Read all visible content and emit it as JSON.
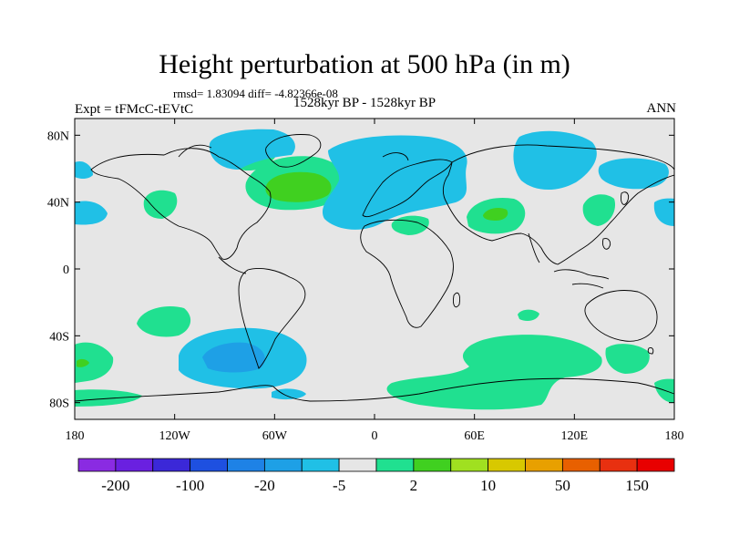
{
  "title": "Height perturbation at 500 hPa (in m)",
  "stats": "rmsd= 1.83094 diff= -4.82366e-08",
  "left_label": "Expt = tFMcC-tEVtC",
  "center_label": "1528kyr BP - 1528kyr BP",
  "right_label": "ANN",
  "map": {
    "projection": "cylindrical equidistant",
    "lon_range": [
      -180,
      180
    ],
    "lat_range": [
      -90,
      90
    ],
    "background_color": "#e6e6e6",
    "lon_ticks": [
      {
        "value": -180,
        "label": "180"
      },
      {
        "value": -120,
        "label": "120W"
      },
      {
        "value": -60,
        "label": "60W"
      },
      {
        "value": 0,
        "label": "0"
      },
      {
        "value": 60,
        "label": "60E"
      },
      {
        "value": 120,
        "label": "120E"
      },
      {
        "value": 180,
        "label": "180"
      }
    ],
    "lat_ticks": [
      {
        "value": 80,
        "label": "80N"
      },
      {
        "value": 40,
        "label": "40N"
      },
      {
        "value": 0,
        "label": "0"
      },
      {
        "value": -40,
        "label": "40S"
      },
      {
        "value": -80,
        "label": "80S"
      }
    ]
  },
  "colorbar": {
    "colors": [
      "#8a2be2",
      "#6a20e0",
      "#3b28d8",
      "#1e50e0",
      "#1e82e6",
      "#1ea0e6",
      "#20c0e6",
      "#e6e6e6",
      "#20e090",
      "#40d020",
      "#a0e020",
      "#d8c800",
      "#e8a000",
      "#e86000",
      "#e83010",
      "#e80000"
    ],
    "labels": [
      "-200",
      "-100",
      "-20",
      "-5",
      "2",
      "10",
      "50",
      "150"
    ]
  },
  "chart_data": {
    "type": "heatmap",
    "title": "Height perturbation at 500 hPa (in m)",
    "subtitle": "1528kyr BP - 1528kyr BP",
    "units": "m",
    "xlim": [
      -180,
      180
    ],
    "ylim": [
      -90,
      90
    ],
    "contour_levels": [
      -200,
      -100,
      -20,
      -5,
      2,
      10,
      50,
      150
    ],
    "features": [
      {
        "name": "negative anomaly over northern Canada",
        "lon": -105,
        "lat": 68,
        "sign": "negative",
        "class": "-5 to -2"
      },
      {
        "name": "positive anomaly over North Atlantic",
        "lon": -40,
        "lat": 52,
        "sign": "positive",
        "class": "2 to 10"
      },
      {
        "name": "negative anomaly over Europe and Atlantic",
        "lon": 5,
        "lat": 50,
        "sign": "negative",
        "class": "-5 to -2"
      },
      {
        "name": "positive anomaly over Middle East",
        "lon": 38,
        "lat": 35,
        "sign": "positive",
        "class": "2 to 10"
      },
      {
        "name": "negative anomaly over Siberia",
        "lon": 80,
        "lat": 60,
        "sign": "negative",
        "class": "-5 to -2"
      },
      {
        "name": "negative anomaly over South Pacific",
        "lon": -75,
        "lat": -58,
        "sign": "negative",
        "class": "-20 to -5"
      },
      {
        "name": "positive anomaly over Southern Ocean",
        "lon": 70,
        "lat": -70,
        "sign": "positive",
        "class": "2 to 10"
      }
    ]
  }
}
